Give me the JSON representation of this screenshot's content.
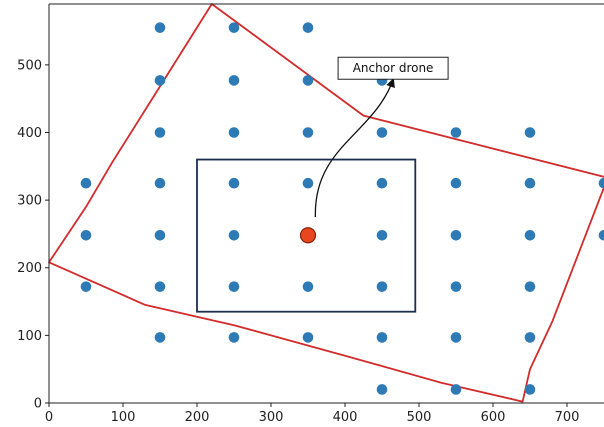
{
  "chart_data": {
    "type": "scatter",
    "title": "",
    "xlabel": "",
    "ylabel": "",
    "xlim": [
      0,
      750
    ],
    "ylim": [
      0,
      590
    ],
    "x_ticks": [
      0,
      100,
      200,
      300,
      400,
      500,
      600,
      700
    ],
    "y_ticks": [
      0,
      100,
      200,
      300,
      400,
      500
    ],
    "grid": false,
    "colors": {
      "points": "#2e7ab5",
      "anchor_fill": "#e8461e",
      "anchor_edge": "#8a1f0a",
      "polygon": "#d22b2b",
      "rectangle": "#1c2e4e",
      "arrow": "#111111"
    },
    "points": [
      {
        "x": 150,
        "y": 555
      },
      {
        "x": 250,
        "y": 555
      },
      {
        "x": 350,
        "y": 555
      },
      {
        "x": 150,
        "y": 477
      },
      {
        "x": 250,
        "y": 477
      },
      {
        "x": 350,
        "y": 477
      },
      {
        "x": 450,
        "y": 477
      },
      {
        "x": 150,
        "y": 400
      },
      {
        "x": 250,
        "y": 400
      },
      {
        "x": 350,
        "y": 400
      },
      {
        "x": 450,
        "y": 400
      },
      {
        "x": 550,
        "y": 400
      },
      {
        "x": 650,
        "y": 400
      },
      {
        "x": 50,
        "y": 325
      },
      {
        "x": 150,
        "y": 325
      },
      {
        "x": 250,
        "y": 325
      },
      {
        "x": 350,
        "y": 325
      },
      {
        "x": 450,
        "y": 325
      },
      {
        "x": 550,
        "y": 325
      },
      {
        "x": 650,
        "y": 325
      },
      {
        "x": 750,
        "y": 325
      },
      {
        "x": 50,
        "y": 248
      },
      {
        "x": 150,
        "y": 248
      },
      {
        "x": 250,
        "y": 248
      },
      {
        "x": 450,
        "y": 248
      },
      {
        "x": 550,
        "y": 248
      },
      {
        "x": 650,
        "y": 248
      },
      {
        "x": 750,
        "y": 248
      },
      {
        "x": 50,
        "y": 172
      },
      {
        "x": 150,
        "y": 172
      },
      {
        "x": 250,
        "y": 172
      },
      {
        "x": 350,
        "y": 172
      },
      {
        "x": 450,
        "y": 172
      },
      {
        "x": 550,
        "y": 172
      },
      {
        "x": 650,
        "y": 172
      },
      {
        "x": 150,
        "y": 97
      },
      {
        "x": 250,
        "y": 97
      },
      {
        "x": 350,
        "y": 97
      },
      {
        "x": 450,
        "y": 97
      },
      {
        "x": 550,
        "y": 97
      },
      {
        "x": 650,
        "y": 97
      },
      {
        "x": 450,
        "y": 20
      },
      {
        "x": 550,
        "y": 20
      },
      {
        "x": 650,
        "y": 20
      }
    ],
    "anchor": {
      "x": 350,
      "y": 248
    },
    "rectangle": {
      "x0": 200,
      "x1": 495,
      "y0": 135,
      "y1": 360
    },
    "polygon": [
      [
        220,
        590
      ],
      [
        425,
        425
      ],
      [
        755,
        333
      ],
      [
        680,
        120
      ],
      [
        650,
        50
      ],
      [
        640,
        2
      ],
      [
        530,
        30
      ],
      [
        400,
        70
      ],
      [
        250,
        115
      ],
      [
        130,
        145
      ],
      [
        0,
        208
      ],
      [
        50,
        290
      ],
      [
        85,
        355
      ]
    ],
    "annotation": {
      "text": "Anchor drone",
      "box": {
        "x": 465,
        "y": 495
      },
      "arrow_from": {
        "x": 360,
        "y": 275
      },
      "arrow_to": {
        "x": 465,
        "y": 478
      }
    }
  }
}
